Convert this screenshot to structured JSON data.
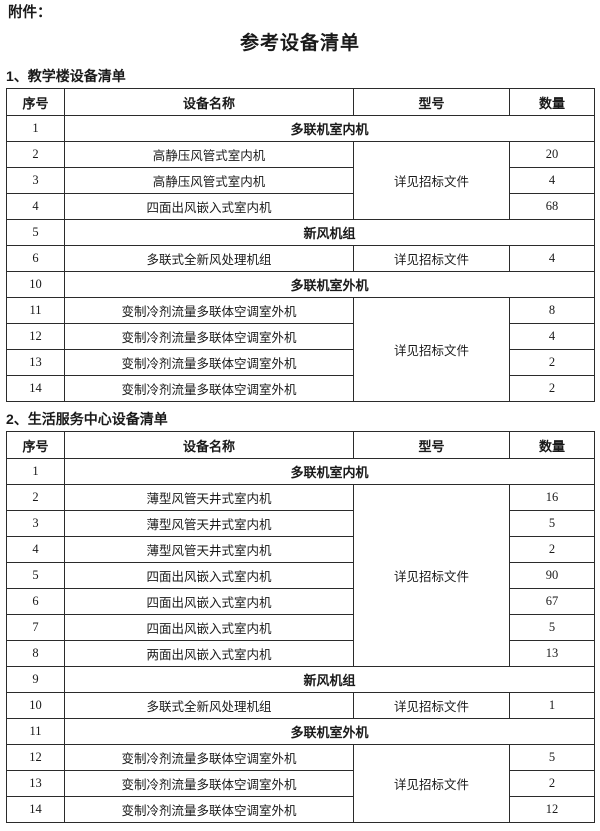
{
  "page": {
    "attachment_label": "附件：",
    "title": "参考设备清单"
  },
  "colors": {
    "text": "#1a1a1a",
    "border": "#2b2b2b",
    "background": "#ffffff"
  },
  "tables": [
    {
      "section_heading": "1、教学楼设备清单",
      "headers": [
        "序号",
        "设备名称",
        "型号",
        "数量"
      ],
      "rows": [
        {
          "no": "1",
          "type": "category",
          "name": "多联机室内机"
        },
        {
          "no": "2",
          "type": "item",
          "name": "高静压风管式室内机",
          "model": "详见招标文件",
          "model_rowspan": 3,
          "qty": "20"
        },
        {
          "no": "3",
          "type": "item",
          "name": "高静压风管式室内机",
          "qty": "4"
        },
        {
          "no": "4",
          "type": "item",
          "name": "四面出风嵌入式室内机",
          "qty": "68"
        },
        {
          "no": "5",
          "type": "category",
          "name": "新风机组"
        },
        {
          "no": "6",
          "type": "item",
          "name": "多联式全新风处理机组",
          "model": "详见招标文件",
          "model_rowspan": 1,
          "qty": "4"
        },
        {
          "no": "10",
          "type": "category",
          "name": "多联机室外机"
        },
        {
          "no": "11",
          "type": "item",
          "name": "变制冷剂流量多联体空调室外机",
          "model": "详见招标文件",
          "model_rowspan": 4,
          "qty": "8"
        },
        {
          "no": "12",
          "type": "item",
          "name": "变制冷剂流量多联体空调室外机",
          "qty": "4"
        },
        {
          "no": "13",
          "type": "item",
          "name": "变制冷剂流量多联体空调室外机",
          "qty": "2"
        },
        {
          "no": "14",
          "type": "item",
          "name": "变制冷剂流量多联体空调室外机",
          "qty": "2"
        }
      ]
    },
    {
      "section_heading": "2、生活服务中心设备清单",
      "headers": [
        "序号",
        "设备名称",
        "型号",
        "数量"
      ],
      "rows": [
        {
          "no": "1",
          "type": "category",
          "name": "多联机室内机"
        },
        {
          "no": "2",
          "type": "item",
          "name": "薄型风管天井式室内机",
          "model": "详见招标文件",
          "model_rowspan": 7,
          "qty": "16"
        },
        {
          "no": "3",
          "type": "item",
          "name": "薄型风管天井式室内机",
          "qty": "5"
        },
        {
          "no": "4",
          "type": "item",
          "name": "薄型风管天井式室内机",
          "qty": "2"
        },
        {
          "no": "5",
          "type": "item",
          "name": "四面出风嵌入式室内机",
          "qty": "90"
        },
        {
          "no": "6",
          "type": "item",
          "name": "四面出风嵌入式室内机",
          "qty": "67"
        },
        {
          "no": "7",
          "type": "item",
          "name": "四面出风嵌入式室内机",
          "qty": "5"
        },
        {
          "no": "8",
          "type": "item",
          "name": "两面出风嵌入式室内机",
          "qty": "13"
        },
        {
          "no": "9",
          "type": "category",
          "name": "新风机组"
        },
        {
          "no": "10",
          "type": "item",
          "name": "多联式全新风处理机组",
          "model": "详见招标文件",
          "model_rowspan": 1,
          "qty": "1"
        },
        {
          "no": "11",
          "type": "category",
          "name": "多联机室外机"
        },
        {
          "no": "12",
          "type": "item",
          "name": "变制冷剂流量多联体空调室外机",
          "model": "详见招标文件",
          "model_rowspan": 3,
          "qty": "5"
        },
        {
          "no": "13",
          "type": "item",
          "name": "变制冷剂流量多联体空调室外机",
          "qty": "2"
        },
        {
          "no": "14",
          "type": "item",
          "name": "变制冷剂流量多联体空调室外机",
          "qty": "12"
        }
      ]
    }
  ]
}
